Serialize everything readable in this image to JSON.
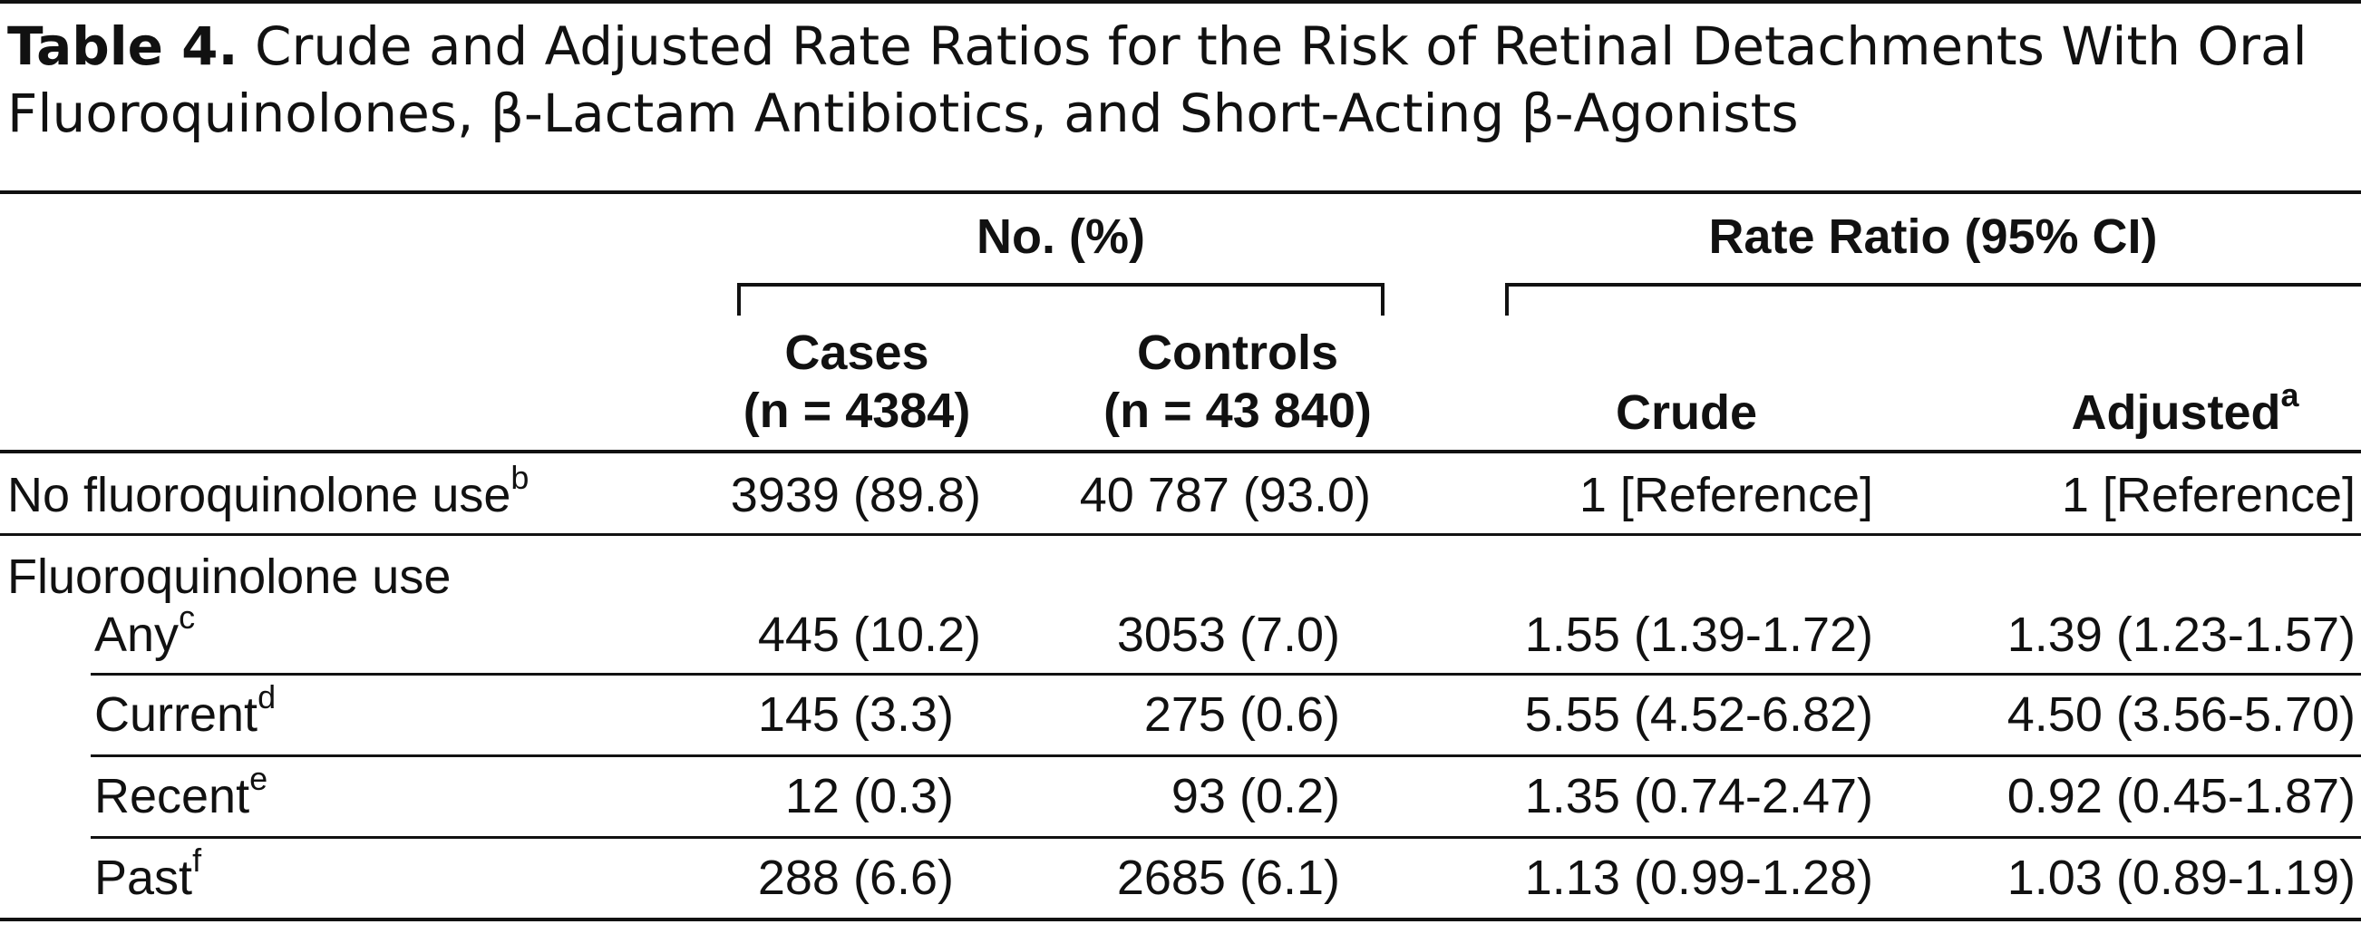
{
  "table": {
    "label": "Table 4.",
    "title": " Crude and Adjusted Rate Ratios for the Risk of Retinal Detachments With Oral Fluoroquinolones, β-Lactam Antibiotics, and Short-Acting β-Agonists",
    "group_headers": {
      "counts": "No. (%)",
      "rate_ratio": "Rate Ratio (95% CI)"
    },
    "columns": {
      "cases": {
        "line1": "Cases",
        "line2": "(n = 4384)"
      },
      "controls": {
        "line1": "Controls",
        "line2": "(n = 43 840)"
      },
      "crude": {
        "label": "Crude"
      },
      "adjusted": {
        "label": "Adjusted",
        "footnote": "a"
      }
    },
    "rows": [
      {
        "label": "No fluoroquinolone use",
        "footnote": "b",
        "cases": "3939 (89.8)",
        "controls": "40 787 (93.0)",
        "crude": "1 [Reference]",
        "adjusted": "1 [Reference]"
      },
      {
        "label": "Fluoroquinolone use"
      },
      {
        "label": "Any",
        "footnote": "c",
        "cases": "445 (10.2)",
        "controls": "3053 (7.0)",
        "crude": "1.55 (1.39-1.72)",
        "adjusted": "1.39 (1.23-1.57)"
      },
      {
        "label": "Current",
        "footnote": "d",
        "cases": "145 (3.3)",
        "controls": "275 (0.6)",
        "crude": "5.55 (4.52-6.82)",
        "adjusted": "4.50 (3.56-5.70)"
      },
      {
        "label": "Recent",
        "footnote": "e",
        "cases": "12 (0.3)",
        "controls": "93 (0.2)",
        "crude": "1.35 (0.74-2.47)",
        "adjusted": "0.92 (0.45-1.87)"
      },
      {
        "label": "Past",
        "footnote": "f",
        "cases": "288 (6.6)",
        "controls": "2685 (6.1)",
        "crude": "1.13 (0.99-1.28)",
        "adjusted": "1.03 (0.89-1.19)"
      }
    ]
  }
}
